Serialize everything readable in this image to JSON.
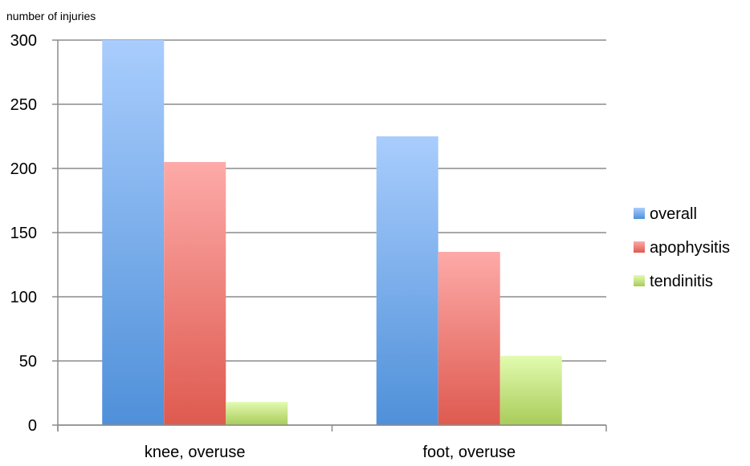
{
  "chart_data": {
    "type": "bar",
    "ylabel": "number of injuries",
    "xlabel": "",
    "categories": [
      "knee, overuse",
      "foot, overuse"
    ],
    "series": [
      {
        "name": "overall",
        "values": [
          300,
          225
        ],
        "color_top": "#a9cdfd",
        "color_bottom": "#4f90d9"
      },
      {
        "name": "apophysitis",
        "values": [
          205,
          135
        ],
        "color_top": "#fdaaa8",
        "color_bottom": "#de5a4f"
      },
      {
        "name": "tendinitis",
        "values": [
          18,
          54
        ],
        "color_top": "#e2fbb0",
        "color_bottom": "#a9cc5a"
      }
    ],
    "ylim": [
      0,
      300
    ],
    "yticks": [
      0,
      50,
      100,
      150,
      200,
      250,
      300
    ],
    "grid": true,
    "legend_position": "right"
  }
}
